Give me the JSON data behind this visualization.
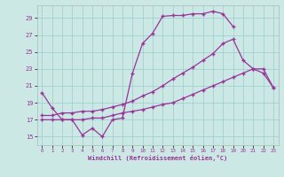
{
  "bg_color": "#cce8e4",
  "line_color": "#993399",
  "grid_color": "#99cccc",
  "xlabel": "Windchill (Refroidissement éolien,°C)",
  "xlim": [
    -0.5,
    23.5
  ],
  "ylim": [
    14.0,
    30.5
  ],
  "xticks": [
    0,
    1,
    2,
    3,
    4,
    5,
    6,
    7,
    8,
    9,
    10,
    11,
    12,
    13,
    14,
    15,
    16,
    17,
    18,
    19,
    20,
    21,
    22,
    23
  ],
  "yticks": [
    15,
    17,
    19,
    21,
    23,
    25,
    27,
    29
  ],
  "line1_x": [
    0,
    1,
    2,
    3,
    4,
    5,
    6,
    7,
    8,
    9,
    10,
    11,
    12,
    13,
    14,
    15,
    16,
    17,
    18,
    19
  ],
  "line1_y": [
    20.2,
    18.4,
    17.0,
    17.0,
    15.2,
    16.0,
    15.0,
    17.0,
    17.2,
    22.5,
    26.0,
    27.2,
    29.2,
    29.3,
    29.3,
    29.5,
    29.5,
    29.8,
    29.5,
    28.0
  ],
  "line2_x": [
    0,
    1,
    2,
    3,
    4,
    5,
    6,
    7,
    8,
    9,
    10,
    11,
    12,
    13,
    14,
    15,
    16,
    17,
    18,
    19,
    20,
    21,
    22,
    23
  ],
  "line2_y": [
    17.5,
    17.5,
    17.8,
    17.8,
    18.0,
    18.0,
    18.2,
    18.5,
    18.8,
    19.2,
    19.8,
    20.3,
    21.0,
    21.8,
    22.5,
    23.2,
    24.0,
    24.8,
    26.0,
    26.5,
    24.0,
    23.0,
    22.5,
    20.8
  ],
  "line3_x": [
    0,
    1,
    2,
    3,
    4,
    5,
    6,
    7,
    8,
    9,
    10,
    11,
    12,
    13,
    14,
    15,
    16,
    17,
    18,
    19,
    20,
    21,
    22,
    23
  ],
  "line3_y": [
    17.0,
    17.0,
    17.0,
    17.0,
    17.0,
    17.2,
    17.2,
    17.5,
    17.8,
    18.0,
    18.2,
    18.5,
    18.8,
    19.0,
    19.5,
    20.0,
    20.5,
    21.0,
    21.5,
    22.0,
    22.5,
    23.0,
    23.0,
    20.8
  ]
}
